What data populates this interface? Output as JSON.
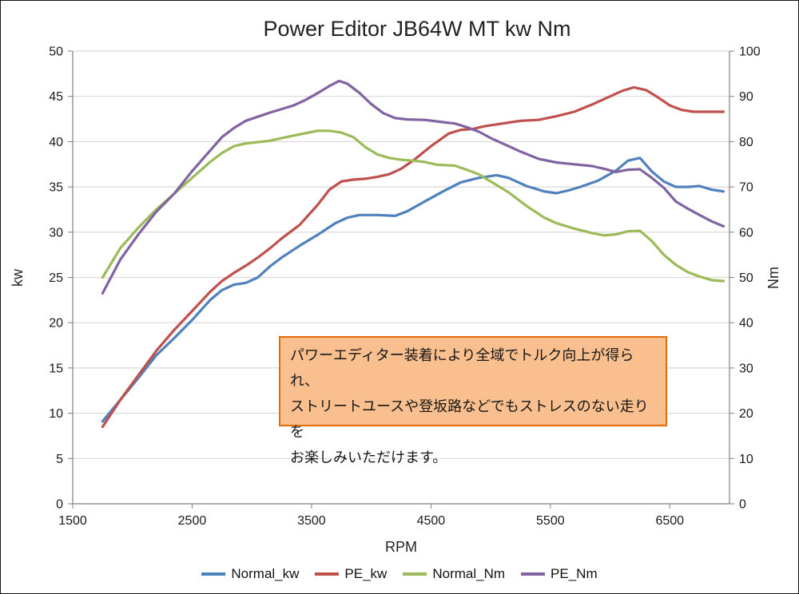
{
  "chart_data": {
    "type": "line",
    "title": "Power Editor  JB64W MT  kw Nm",
    "xlabel": "RPM",
    "ylabel_left": "kw",
    "ylabel_right": "Nm",
    "xlim": [
      1500,
      7000
    ],
    "x_ticks": [
      1500,
      2500,
      3500,
      4500,
      5500,
      6500
    ],
    "ylim_left": [
      0,
      50
    ],
    "y_step_left": 5,
    "ylim_right": [
      0,
      100
    ],
    "y_step_right": 10,
    "grid": "horizontal",
    "gridline_color": "#D9D9D9",
    "axis_color": "#808080",
    "legend_position": "bottom",
    "series": [
      {
        "name": "Normal_kw",
        "axis": "left",
        "color": "#4F81BD",
        "points": [
          [
            1750,
            9.1
          ],
          [
            1900,
            11.5
          ],
          [
            2050,
            13.9
          ],
          [
            2200,
            16.4
          ],
          [
            2350,
            18.3
          ],
          [
            2500,
            20.3
          ],
          [
            2650,
            22.5
          ],
          [
            2750,
            23.6
          ],
          [
            2850,
            24.2
          ],
          [
            2950,
            24.4
          ],
          [
            3050,
            25.0
          ],
          [
            3150,
            26.2
          ],
          [
            3250,
            27.2
          ],
          [
            3400,
            28.5
          ],
          [
            3550,
            29.7
          ],
          [
            3700,
            31.0
          ],
          [
            3800,
            31.6
          ],
          [
            3900,
            31.9
          ],
          [
            4050,
            31.9
          ],
          [
            4200,
            31.8
          ],
          [
            4300,
            32.3
          ],
          [
            4450,
            33.4
          ],
          [
            4600,
            34.5
          ],
          [
            4750,
            35.5
          ],
          [
            4900,
            36.0
          ],
          [
            5050,
            36.3
          ],
          [
            5150,
            36.0
          ],
          [
            5300,
            35.1
          ],
          [
            5450,
            34.5
          ],
          [
            5550,
            34.3
          ],
          [
            5650,
            34.6
          ],
          [
            5750,
            35.0
          ],
          [
            5900,
            35.7
          ],
          [
            6050,
            36.8
          ],
          [
            6150,
            37.9
          ],
          [
            6250,
            38.2
          ],
          [
            6350,
            36.7
          ],
          [
            6450,
            35.6
          ],
          [
            6550,
            35.0
          ],
          [
            6650,
            35.0
          ],
          [
            6750,
            35.1
          ],
          [
            6850,
            34.7
          ],
          [
            6950,
            34.5
          ]
        ]
      },
      {
        "name": "PE_kw",
        "axis": "left",
        "color": "#C0504D",
        "points": [
          [
            1750,
            8.5
          ],
          [
            1900,
            11.5
          ],
          [
            2050,
            14.2
          ],
          [
            2200,
            16.9
          ],
          [
            2350,
            19.2
          ],
          [
            2500,
            21.3
          ],
          [
            2650,
            23.4
          ],
          [
            2750,
            24.6
          ],
          [
            2850,
            25.5
          ],
          [
            2950,
            26.3
          ],
          [
            3050,
            27.2
          ],
          [
            3150,
            28.2
          ],
          [
            3250,
            29.3
          ],
          [
            3400,
            30.8
          ],
          [
            3550,
            33.0
          ],
          [
            3650,
            34.7
          ],
          [
            3750,
            35.6
          ],
          [
            3850,
            35.8
          ],
          [
            3950,
            35.9
          ],
          [
            4050,
            36.1
          ],
          [
            4150,
            36.4
          ],
          [
            4250,
            37.0
          ],
          [
            4350,
            37.9
          ],
          [
            4500,
            39.5
          ],
          [
            4650,
            40.9
          ],
          [
            4750,
            41.3
          ],
          [
            4850,
            41.4
          ],
          [
            4950,
            41.7
          ],
          [
            5100,
            42.0
          ],
          [
            5250,
            42.3
          ],
          [
            5400,
            42.4
          ],
          [
            5550,
            42.8
          ],
          [
            5700,
            43.3
          ],
          [
            5850,
            44.1
          ],
          [
            6000,
            45.0
          ],
          [
            6100,
            45.6
          ],
          [
            6200,
            46.0
          ],
          [
            6300,
            45.7
          ],
          [
            6400,
            44.9
          ],
          [
            6500,
            44.0
          ],
          [
            6600,
            43.5
          ],
          [
            6700,
            43.3
          ],
          [
            6800,
            43.3
          ],
          [
            6950,
            43.3
          ]
        ]
      },
      {
        "name": "Normal_Nm",
        "axis": "right",
        "color": "#9BBB59",
        "points": [
          [
            1750,
            50.0
          ],
          [
            1900,
            56.5
          ],
          [
            2050,
            61.0
          ],
          [
            2200,
            65.0
          ],
          [
            2350,
            68.5
          ],
          [
            2500,
            72.0
          ],
          [
            2650,
            75.5
          ],
          [
            2750,
            77.5
          ],
          [
            2850,
            79.0
          ],
          [
            2950,
            79.6
          ],
          [
            3050,
            79.9
          ],
          [
            3150,
            80.2
          ],
          [
            3250,
            80.8
          ],
          [
            3400,
            81.6
          ],
          [
            3550,
            82.4
          ],
          [
            3650,
            82.4
          ],
          [
            3750,
            82.0
          ],
          [
            3850,
            81.0
          ],
          [
            3950,
            78.8
          ],
          [
            4050,
            77.2
          ],
          [
            4150,
            76.4
          ],
          [
            4250,
            76.0
          ],
          [
            4350,
            75.8
          ],
          [
            4450,
            75.5
          ],
          [
            4550,
            74.9
          ],
          [
            4700,
            74.7
          ],
          [
            4800,
            73.8
          ],
          [
            4900,
            72.8
          ],
          [
            5000,
            71.2
          ],
          [
            5150,
            68.8
          ],
          [
            5300,
            65.8
          ],
          [
            5450,
            63.2
          ],
          [
            5550,
            62.0
          ],
          [
            5700,
            60.8
          ],
          [
            5850,
            59.8
          ],
          [
            5950,
            59.3
          ],
          [
            6050,
            59.5
          ],
          [
            6150,
            60.2
          ],
          [
            6250,
            60.3
          ],
          [
            6350,
            58.0
          ],
          [
            6450,
            55.0
          ],
          [
            6550,
            52.8
          ],
          [
            6650,
            51.2
          ],
          [
            6750,
            50.2
          ],
          [
            6850,
            49.4
          ],
          [
            6950,
            49.2
          ]
        ]
      },
      {
        "name": "PE_Nm",
        "axis": "right",
        "color": "#8064A2",
        "points": [
          [
            1750,
            46.5
          ],
          [
            1900,
            54.0
          ],
          [
            2050,
            59.5
          ],
          [
            2200,
            64.5
          ],
          [
            2350,
            68.5
          ],
          [
            2500,
            73.5
          ],
          [
            2650,
            78.0
          ],
          [
            2750,
            81.0
          ],
          [
            2850,
            83.0
          ],
          [
            2950,
            84.6
          ],
          [
            3050,
            85.5
          ],
          [
            3150,
            86.4
          ],
          [
            3250,
            87.2
          ],
          [
            3350,
            88.0
          ],
          [
            3450,
            89.2
          ],
          [
            3550,
            90.7
          ],
          [
            3650,
            92.3
          ],
          [
            3730,
            93.4
          ],
          [
            3800,
            92.8
          ],
          [
            3900,
            90.8
          ],
          [
            4000,
            88.3
          ],
          [
            4100,
            86.3
          ],
          [
            4200,
            85.2
          ],
          [
            4300,
            84.9
          ],
          [
            4450,
            84.8
          ],
          [
            4600,
            84.3
          ],
          [
            4700,
            84.0
          ],
          [
            4800,
            83.2
          ],
          [
            4900,
            82.2
          ],
          [
            5000,
            80.8
          ],
          [
            5100,
            79.6
          ],
          [
            5250,
            77.8
          ],
          [
            5400,
            76.2
          ],
          [
            5550,
            75.4
          ],
          [
            5700,
            75.0
          ],
          [
            5850,
            74.6
          ],
          [
            5950,
            74.0
          ],
          [
            6050,
            73.3
          ],
          [
            6150,
            73.8
          ],
          [
            6250,
            73.9
          ],
          [
            6350,
            72.0
          ],
          [
            6450,
            69.8
          ],
          [
            6550,
            66.8
          ],
          [
            6650,
            65.2
          ],
          [
            6750,
            63.8
          ],
          [
            6850,
            62.4
          ],
          [
            6950,
            61.3
          ]
        ]
      }
    ]
  },
  "annotation": {
    "lines": [
      "パワーエディター装着により全域でトルク向上が得られ、",
      "ストリートユースや登坂路などでもストレスのない走りを",
      "お楽しみいただけます。"
    ],
    "bg_color": "#FABF8F",
    "border_color": "#E36C0A"
  }
}
